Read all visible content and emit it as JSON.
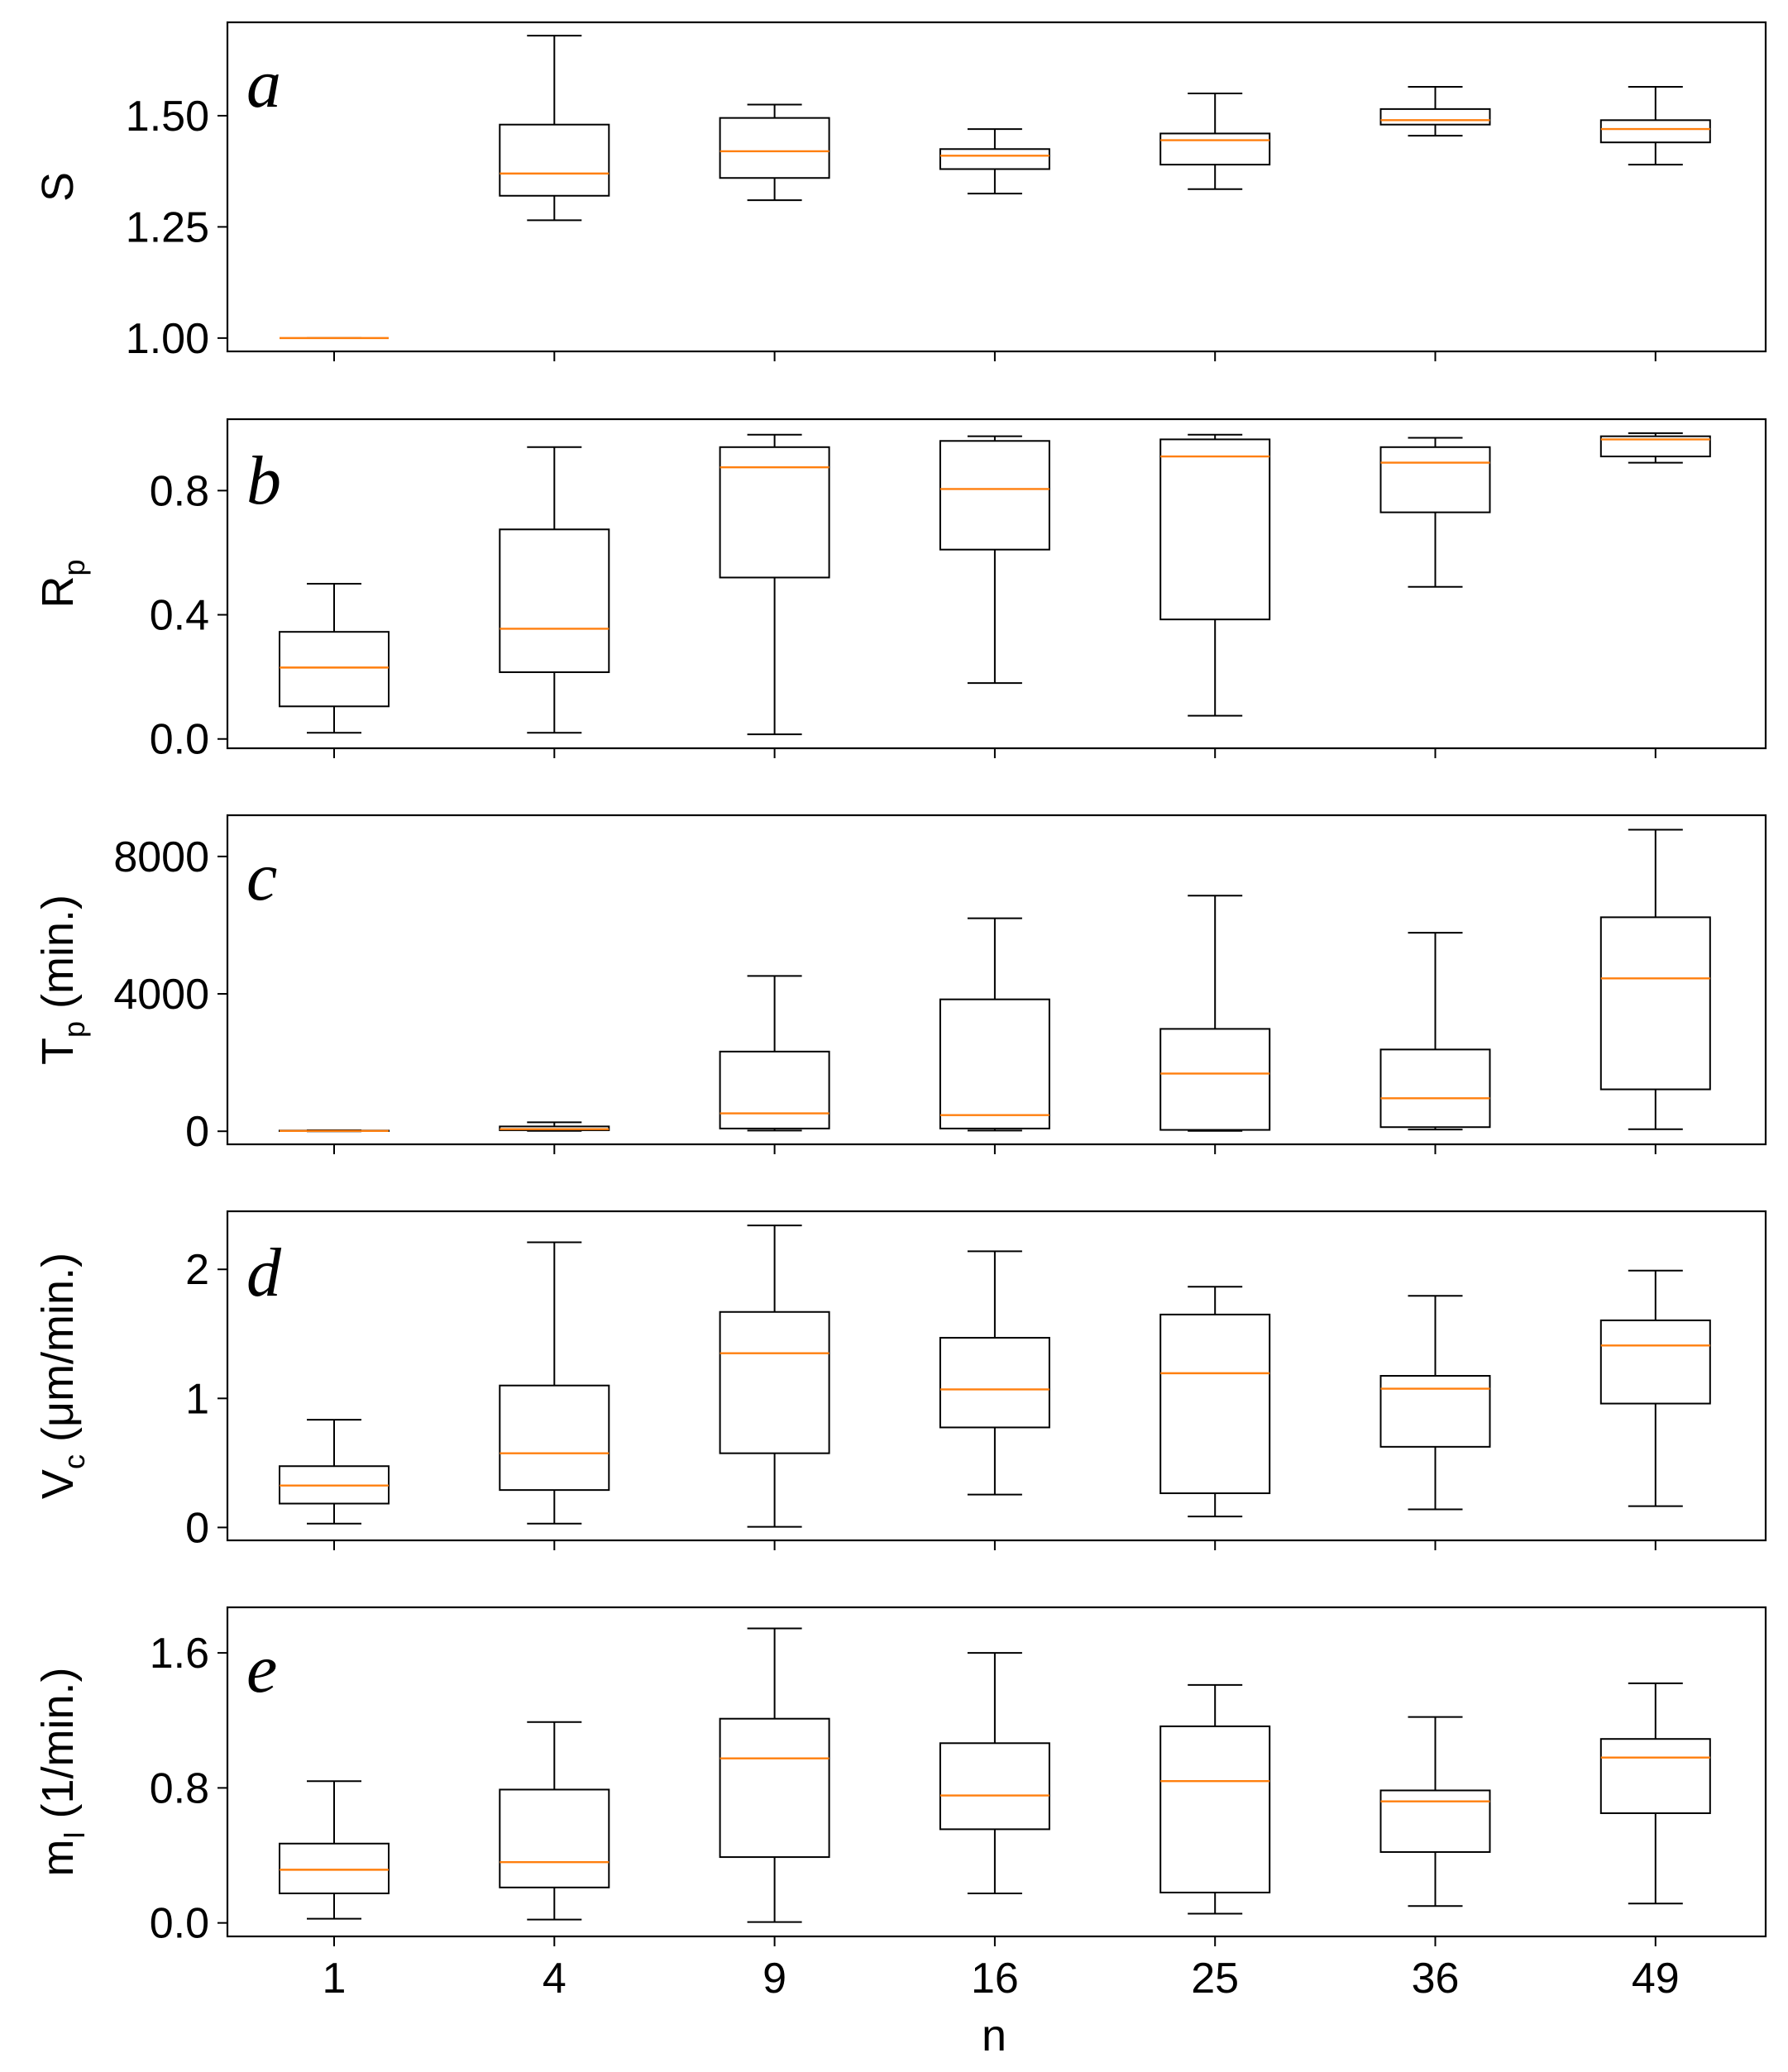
{
  "chart_data": {
    "type": "box",
    "xlabel": "n",
    "categories": [
      "1",
      "4",
      "9",
      "16",
      "25",
      "36",
      "49"
    ],
    "colors": {
      "median": "#ff7f0e",
      "box": "#000000"
    },
    "panels": [
      {
        "letter": "a",
        "ylabel": "S",
        "ylabel_sub": "",
        "ylabel_suffix": "",
        "ylim": [
          0.97,
          1.71
        ],
        "yticks": [
          1.0,
          1.25,
          1.5
        ],
        "ytick_labels": [
          "1.00",
          "1.25",
          "1.50"
        ],
        "boxes": [
          {
            "wlo": 1.0,
            "q1": 1.0,
            "med": 1.0,
            "q3": 1.0,
            "whi": 1.0
          },
          {
            "wlo": 1.265,
            "q1": 1.32,
            "med": 1.37,
            "q3": 1.48,
            "whi": 1.68
          },
          {
            "wlo": 1.31,
            "q1": 1.36,
            "med": 1.42,
            "q3": 1.495,
            "whi": 1.525
          },
          {
            "wlo": 1.325,
            "q1": 1.38,
            "med": 1.41,
            "q3": 1.425,
            "whi": 1.47
          },
          {
            "wlo": 1.335,
            "q1": 1.39,
            "med": 1.445,
            "q3": 1.46,
            "whi": 1.55
          },
          {
            "wlo": 1.455,
            "q1": 1.48,
            "med": 1.49,
            "q3": 1.515,
            "whi": 1.565
          },
          {
            "wlo": 1.39,
            "q1": 1.44,
            "med": 1.47,
            "q3": 1.49,
            "whi": 1.565
          }
        ]
      },
      {
        "letter": "b",
        "ylabel": "R",
        "ylabel_sub": "p",
        "ylabel_suffix": "",
        "ylim": [
          -0.03,
          1.03
        ],
        "yticks": [
          0.0,
          0.4,
          0.8
        ],
        "ytick_labels": [
          "0.0",
          "0.4",
          "0.8"
        ],
        "boxes": [
          {
            "wlo": 0.02,
            "q1": 0.105,
            "med": 0.23,
            "q3": 0.345,
            "whi": 0.5
          },
          {
            "wlo": 0.02,
            "q1": 0.215,
            "med": 0.355,
            "q3": 0.675,
            "whi": 0.94
          },
          {
            "wlo": 0.015,
            "q1": 0.52,
            "med": 0.875,
            "q3": 0.94,
            "whi": 0.98
          },
          {
            "wlo": 0.18,
            "q1": 0.61,
            "med": 0.805,
            "q3": 0.96,
            "whi": 0.975
          },
          {
            "wlo": 0.075,
            "q1": 0.385,
            "med": 0.91,
            "q3": 0.965,
            "whi": 0.98
          },
          {
            "wlo": 0.49,
            "q1": 0.73,
            "med": 0.89,
            "q3": 0.94,
            "whi": 0.97
          },
          {
            "wlo": 0.89,
            "q1": 0.91,
            "med": 0.965,
            "q3": 0.975,
            "whi": 0.985
          }
        ]
      },
      {
        "letter": "c",
        "ylabel": "T",
        "ylabel_sub": "p",
        "ylabel_suffix": " (min.)",
        "ylim": [
          -380,
          9200
        ],
        "yticks": [
          0,
          4000,
          8000
        ],
        "ytick_labels": [
          "0",
          "4000",
          "8000"
        ],
        "boxes": [
          {
            "wlo": 0,
            "q1": 5,
            "med": 10,
            "q3": 20,
            "whi": 30
          },
          {
            "wlo": 10,
            "q1": 30,
            "med": 60,
            "q3": 140,
            "whi": 260
          },
          {
            "wlo": 20,
            "q1": 80,
            "med": 520,
            "q3": 2320,
            "whi": 4520
          },
          {
            "wlo": 20,
            "q1": 80,
            "med": 470,
            "q3": 3840,
            "whi": 6200
          },
          {
            "wlo": 10,
            "q1": 40,
            "med": 1680,
            "q3": 2980,
            "whi": 6860
          },
          {
            "wlo": 50,
            "q1": 120,
            "med": 960,
            "q3": 2380,
            "whi": 5780
          },
          {
            "wlo": 60,
            "q1": 1220,
            "med": 4450,
            "q3": 6230,
            "whi": 8780
          }
        ]
      },
      {
        "letter": "d",
        "ylabel": "V",
        "ylabel_sub": "c",
        "ylabel_suffix": " (μm/min.)",
        "ylim": [
          -0.1,
          2.45
        ],
        "yticks": [
          0,
          1,
          2
        ],
        "ytick_labels": [
          "0",
          "1",
          "2"
        ],
        "boxes": [
          {
            "wlo": 0.03,
            "q1": 0.185,
            "med": 0.325,
            "q3": 0.475,
            "whi": 0.835
          },
          {
            "wlo": 0.03,
            "q1": 0.29,
            "med": 0.575,
            "q3": 1.1,
            "whi": 2.21
          },
          {
            "wlo": 0.005,
            "q1": 0.575,
            "med": 1.35,
            "q3": 1.67,
            "whi": 2.34
          },
          {
            "wlo": 0.255,
            "q1": 0.775,
            "med": 1.07,
            "q3": 1.47,
            "whi": 2.14
          },
          {
            "wlo": 0.085,
            "q1": 0.265,
            "med": 1.195,
            "q3": 1.65,
            "whi": 1.865
          },
          {
            "wlo": 0.14,
            "q1": 0.625,
            "med": 1.075,
            "q3": 1.175,
            "whi": 1.795
          },
          {
            "wlo": 0.165,
            "q1": 0.96,
            "med": 1.41,
            "q3": 1.605,
            "whi": 1.99
          }
        ]
      },
      {
        "letter": "e",
        "ylabel": "m",
        "ylabel_sub": "I",
        "ylabel_suffix": " (1/min.)",
        "ylim": [
          -0.08,
          1.87
        ],
        "yticks": [
          0.0,
          0.8,
          1.6
        ],
        "ytick_labels": [
          "0.0",
          "0.8",
          "1.6"
        ],
        "boxes": [
          {
            "wlo": 0.025,
            "q1": 0.175,
            "med": 0.315,
            "q3": 0.47,
            "whi": 0.84
          },
          {
            "wlo": 0.02,
            "q1": 0.21,
            "med": 0.36,
            "q3": 0.79,
            "whi": 1.19
          },
          {
            "wlo": 0.005,
            "q1": 0.39,
            "med": 0.975,
            "q3": 1.21,
            "whi": 1.745
          },
          {
            "wlo": 0.175,
            "q1": 0.555,
            "med": 0.755,
            "q3": 1.065,
            "whi": 1.6
          },
          {
            "wlo": 0.055,
            "q1": 0.18,
            "med": 0.84,
            "q3": 1.165,
            "whi": 1.41
          },
          {
            "wlo": 0.1,
            "q1": 0.42,
            "med": 0.72,
            "q3": 0.785,
            "whi": 1.22
          },
          {
            "wlo": 0.115,
            "q1": 0.65,
            "med": 0.98,
            "q3": 1.09,
            "whi": 1.42
          }
        ]
      }
    ]
  }
}
